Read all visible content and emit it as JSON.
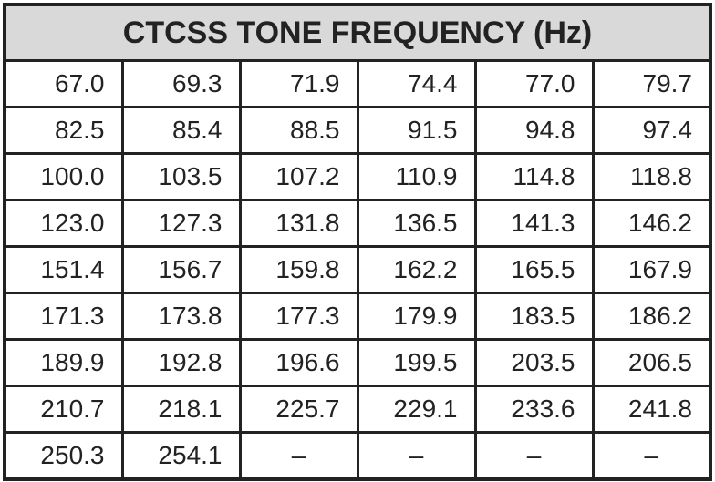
{
  "table": {
    "title": "CTCSS TONE FREQUENCY (Hz)",
    "rows": [
      [
        "67.0",
        "69.3",
        "71.9",
        "74.4",
        "77.0",
        "79.7"
      ],
      [
        "82.5",
        "85.4",
        "88.5",
        "91.5",
        "94.8",
        "97.4"
      ],
      [
        "100.0",
        "103.5",
        "107.2",
        "110.9",
        "114.8",
        "118.8"
      ],
      [
        "123.0",
        "127.3",
        "131.8",
        "136.5",
        "141.3",
        "146.2"
      ],
      [
        "151.4",
        "156.7",
        "159.8",
        "162.2",
        "165.5",
        "167.9"
      ],
      [
        "171.3",
        "173.8",
        "177.3",
        "179.9",
        "183.5",
        "186.2"
      ],
      [
        "189.9",
        "192.8",
        "196.6",
        "199.5",
        "203.5",
        "206.5"
      ],
      [
        "210.7",
        "218.1",
        "225.7",
        "229.1",
        "233.6",
        "241.8"
      ],
      [
        "250.3",
        "254.1",
        "–",
        "–",
        "–",
        "–"
      ]
    ]
  }
}
